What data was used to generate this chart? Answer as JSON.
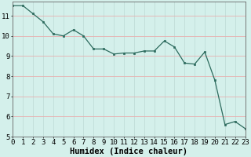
{
  "x": [
    0,
    1,
    2,
    3,
    4,
    5,
    6,
    7,
    8,
    9,
    10,
    11,
    12,
    13,
    14,
    15,
    16,
    17,
    18,
    19,
    20,
    21,
    22,
    23
  ],
  "y": [
    11.5,
    11.5,
    11.1,
    10.7,
    10.1,
    10.0,
    10.3,
    10.0,
    9.35,
    9.35,
    9.1,
    9.15,
    9.15,
    9.25,
    9.25,
    9.75,
    9.45,
    8.65,
    8.6,
    9.2,
    7.8,
    5.6,
    5.75,
    5.4
  ],
  "line_color": "#2d6b5e",
  "marker_color": "#2d6b5e",
  "bg_color": "#d4f0eb",
  "grid_color_v": "#c0ddd8",
  "grid_color_h": "#e8b0b0",
  "axis_label": "Humidex (Indice chaleur)",
  "xlim": [
    0,
    23
  ],
  "ylim": [
    5,
    11.7
  ],
  "yticks": [
    5,
    6,
    7,
    8,
    9,
    10,
    11
  ],
  "xticks": [
    0,
    1,
    2,
    3,
    4,
    5,
    6,
    7,
    8,
    9,
    10,
    11,
    12,
    13,
    14,
    15,
    16,
    17,
    18,
    19,
    20,
    21,
    22,
    23
  ],
  "tick_fontsize": 6.5,
  "label_fontsize": 7.5
}
